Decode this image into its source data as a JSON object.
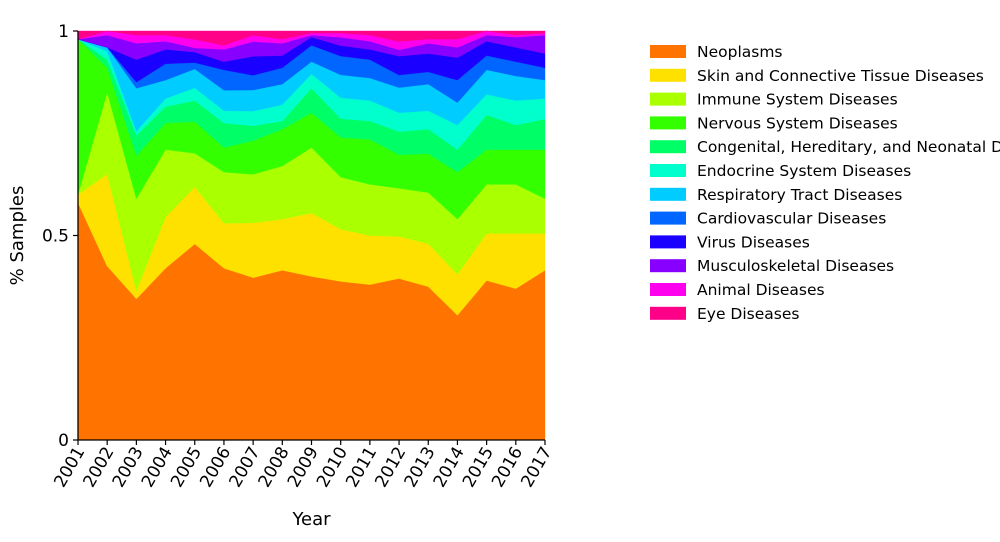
{
  "chart_data": {
    "type": "area",
    "stacked": true,
    "normalized": true,
    "xlabel": "Year",
    "ylabel": "% Samples",
    "ylim": [
      0,
      1
    ],
    "yticks": [
      "0",
      "0.5",
      "1"
    ],
    "x": [
      "2001",
      "2002",
      "2003",
      "2004",
      "2005",
      "2006",
      "2007",
      "2008",
      "2009",
      "2010",
      "2011",
      "2012",
      "2013",
      "2014",
      "2015",
      "2016",
      "2017"
    ],
    "grid": false,
    "legend_position": "right",
    "series": [
      {
        "name": "Neoplasms",
        "color": "#ff7300",
        "values": [
          0.58,
          0.425,
          0.345,
          0.42,
          0.465,
          0.42,
          0.385,
          0.415,
          0.4,
          0.38,
          0.38,
          0.385,
          0.375,
          0.305,
          0.39,
          0.37,
          0.415
        ]
      },
      {
        "name": "Skin and Connective Tissue Diseases",
        "color": "#ffe100",
        "values": [
          0.02,
          0.225,
          0.02,
          0.125,
          0.135,
          0.11,
          0.13,
          0.125,
          0.155,
          0.125,
          0.12,
          0.1,
          0.105,
          0.1,
          0.115,
          0.135,
          0.09
        ]
      },
      {
        "name": "Immune System Diseases",
        "color": "#aaff00",
        "values": [
          0.0,
          0.2,
          0.225,
          0.165,
          0.08,
          0.125,
          0.115,
          0.13,
          0.16,
          0.125,
          0.125,
          0.115,
          0.125,
          0.135,
          0.12,
          0.12,
          0.085
        ]
      },
      {
        "name": "Nervous System Diseases",
        "color": "#33ff00",
        "values": [
          0.38,
          0.06,
          0.105,
          0.065,
          0.075,
          0.06,
          0.08,
          0.09,
          0.085,
          0.095,
          0.11,
          0.08,
          0.095,
          0.115,
          0.085,
          0.085,
          0.12
        ]
      },
      {
        "name": "Congenital, Hereditary, and Neonatal Diseases and Abnormalities",
        "color": "#00ff66",
        "values": [
          0.0,
          0.02,
          0.05,
          0.04,
          0.05,
          0.06,
          0.035,
          0.02,
          0.06,
          0.045,
          0.045,
          0.055,
          0.06,
          0.055,
          0.085,
          0.06,
          0.075
        ]
      },
      {
        "name": "Endocrine System Diseases",
        "color": "#00ffcc",
        "values": [
          0.0,
          0.02,
          0.01,
          0.02,
          0.03,
          0.03,
          0.035,
          0.04,
          0.035,
          0.05,
          0.05,
          0.045,
          0.045,
          0.06,
          0.05,
          0.06,
          0.05
        ]
      },
      {
        "name": "Respiratory Tract Diseases",
        "color": "#00ccff",
        "values": [
          0.0,
          0.01,
          0.105,
          0.045,
          0.045,
          0.05,
          0.05,
          0.05,
          0.03,
          0.055,
          0.055,
          0.06,
          0.065,
          0.055,
          0.06,
          0.06,
          0.045
        ]
      },
      {
        "name": "Cardiovascular Diseases",
        "color": "#0066ff",
        "values": [
          0.0,
          0.0,
          0.015,
          0.04,
          0.015,
          0.05,
          0.035,
          0.04,
          0.04,
          0.045,
          0.045,
          0.03,
          0.03,
          0.055,
          0.035,
          0.035,
          0.03
        ]
      },
      {
        "name": "Virus Diseases",
        "color": "#1a00ff",
        "values": [
          0.0,
          0.0,
          0.055,
          0.035,
          0.025,
          0.02,
          0.045,
          0.03,
          0.02,
          0.025,
          0.025,
          0.045,
          0.045,
          0.055,
          0.035,
          0.035,
          0.035
        ]
      },
      {
        "name": "Musculoskeletal Diseases",
        "color": "#8800ff",
        "values": [
          0.0,
          0.03,
          0.04,
          0.02,
          0.01,
          0.03,
          0.035,
          0.03,
          0.005,
          0.02,
          0.02,
          0.015,
          0.025,
          0.025,
          0.015,
          0.025,
          0.045
        ]
      },
      {
        "name": "Animal Diseases",
        "color": "#ff00ee",
        "values": [
          0.0,
          0.01,
          0.02,
          0.015,
          0.02,
          0.01,
          0.015,
          0.01,
          0.005,
          0.01,
          0.015,
          0.02,
          0.01,
          0.02,
          0.01,
          0.005,
          0.005
        ]
      },
      {
        "name": "Eye Diseases",
        "color": "#ff0088",
        "values": [
          0.02,
          0.0,
          0.01,
          0.01,
          0.02,
          0.035,
          0.01,
          0.02,
          0.005,
          0.005,
          0.01,
          0.025,
          0.02,
          0.02,
          0.0,
          0.01,
          0.005
        ]
      }
    ]
  }
}
